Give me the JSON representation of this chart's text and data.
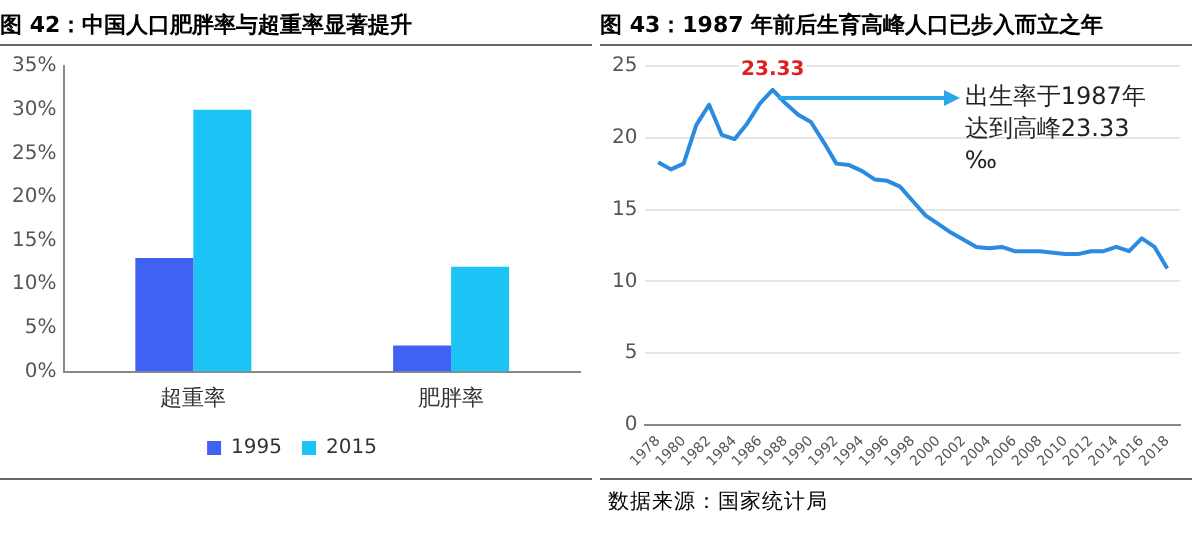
{
  "chart_data": [
    {
      "type": "bar",
      "title": "图 42：中国人口肥胖率与超重率显著提升",
      "categories": [
        "超重率",
        "肥胖率"
      ],
      "series": [
        {
          "name": "1995",
          "color": "#3f62f2",
          "values": [
            13,
            3
          ]
        },
        {
          "name": "2015",
          "color": "#1cc4f6",
          "values": [
            30,
            12
          ]
        }
      ],
      "ylim": [
        0,
        35
      ],
      "yticks": [
        {
          "value": 0,
          "label": "0%"
        },
        {
          "value": 5,
          "label": "5%"
        },
        {
          "value": 10,
          "label": "10%"
        },
        {
          "value": 15,
          "label": "15%"
        },
        {
          "value": 20,
          "label": "20%"
        },
        {
          "value": 25,
          "label": "25%"
        },
        {
          "value": 30,
          "label": "30%"
        },
        {
          "value": 35,
          "label": "35%"
        }
      ],
      "legend": "bottom"
    },
    {
      "type": "line",
      "title": "图 43：1987 年前后生育高峰人口已步入而立之年",
      "x": [
        1978,
        1979,
        1980,
        1981,
        1982,
        1983,
        1984,
        1985,
        1986,
        1987,
        1988,
        1989,
        1990,
        1991,
        1992,
        1993,
        1994,
        1995,
        1996,
        1997,
        1998,
        1999,
        2000,
        2001,
        2002,
        2003,
        2004,
        2005,
        2006,
        2007,
        2008,
        2009,
        2010,
        2011,
        2012,
        2013,
        2014,
        2015,
        2016,
        2017,
        2018
      ],
      "series": [
        {
          "color": "#2b8be0",
          "values": [
            18.3,
            17.8,
            18.2,
            20.9,
            22.3,
            20.2,
            19.9,
            21.0,
            22.4,
            23.33,
            22.4,
            21.6,
            21.1,
            19.7,
            18.2,
            18.1,
            17.7,
            17.1,
            17.0,
            16.6,
            15.6,
            14.6,
            14.0,
            13.4,
            12.9,
            12.4,
            12.3,
            12.4,
            12.1,
            12.1,
            12.1,
            12.0,
            11.9,
            11.9,
            12.1,
            12.1,
            12.4,
            12.1,
            13.0,
            12.4,
            10.9
          ],
          "value_labels": [
            null,
            null,
            null,
            null,
            null,
            null,
            null,
            null,
            null,
            "23.33",
            null,
            null,
            null,
            null,
            null,
            null,
            null,
            null,
            null,
            null,
            null,
            null,
            null,
            null,
            null,
            null,
            null,
            null,
            null,
            null,
            null,
            null,
            null,
            null,
            null,
            null,
            null,
            null,
            null,
            null,
            null
          ]
        }
      ],
      "xlim": [
        1977,
        2019
      ],
      "xticks": [
        {
          "value": 1978,
          "label": "1978"
        },
        {
          "value": 1980,
          "label": "1980"
        },
        {
          "value": 1982,
          "label": "1982"
        },
        {
          "value": 1984,
          "label": "1984"
        },
        {
          "value": 1986,
          "label": "1986"
        },
        {
          "value": 1988,
          "label": "1988"
        },
        {
          "value": 1990,
          "label": "1990"
        },
        {
          "value": 1992,
          "label": "1992"
        },
        {
          "value": 1994,
          "label": "1994"
        },
        {
          "value": 1996,
          "label": "1996"
        },
        {
          "value": 1998,
          "label": "1998"
        },
        {
          "value": 2000,
          "label": "2000"
        },
        {
          "value": 2002,
          "label": "2002"
        },
        {
          "value": 2004,
          "label": "2004"
        },
        {
          "value": 2006,
          "label": "2006"
        },
        {
          "value": 2008,
          "label": "2008"
        },
        {
          "value": 2010,
          "label": "2010"
        },
        {
          "value": 2012,
          "label": "2012"
        },
        {
          "value": 2014,
          "label": "2014"
        },
        {
          "value": 2016,
          "label": "2016"
        },
        {
          "value": 2018,
          "label": "2018"
        }
      ],
      "ylim": [
        0,
        25
      ],
      "yticks": [
        0,
        5,
        10,
        15,
        20,
        25
      ],
      "grid": "y",
      "marker": "none",
      "annotations": [
        {
          "text": "出生率于1987年达到高峰23.33‰",
          "x": 1987,
          "y": 23.33
        },
        "数据来源：国家统计局"
      ]
    }
  ]
}
